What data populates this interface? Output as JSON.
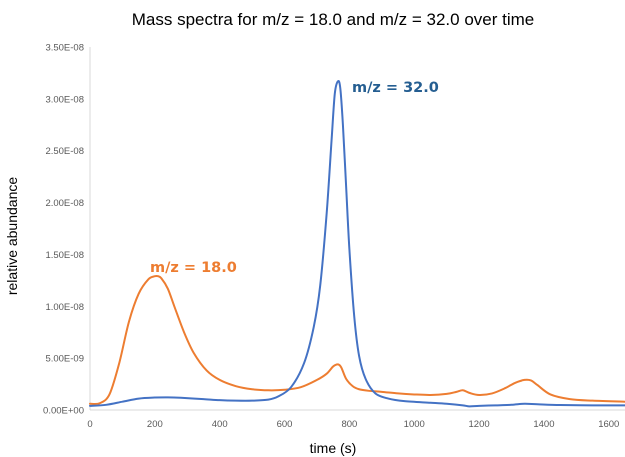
{
  "chart_data": {
    "type": "line",
    "title": "Mass spectra for m/z = 18.0 and m/z = 32.0 over time",
    "xlabel": "time (s)",
    "ylabel": "relative abundance",
    "xlim": [
      0,
      1650
    ],
    "ylim": [
      0,
      3.5e-08
    ],
    "x_ticks": [
      "0",
      "200",
      "400",
      "600",
      "800",
      "1000",
      "1200",
      "1400",
      "1600"
    ],
    "y_ticks": [
      "0.00E+00",
      "5.00E-09",
      "1.00E-08",
      "1.50E-08",
      "2.00E-08",
      "2.50E-08",
      "3.00E-08",
      "3.50E-08"
    ],
    "grid": false,
    "legend": "none",
    "annotations": [
      {
        "text": "m/z = 18.0",
        "series": 0
      },
      {
        "text": "m/z = 32.0",
        "series": 1
      }
    ],
    "series": [
      {
        "name": "m/z = 18.0",
        "color": "#ED7D31",
        "x": [
          0,
          30,
          60,
          90,
          120,
          150,
          180,
          200,
          210,
          220,
          240,
          260,
          290,
          320,
          360,
          400,
          450,
          500,
          550,
          600,
          650,
          700,
          730,
          750,
          765,
          775,
          790,
          810,
          830,
          860,
          900,
          950,
          1000,
          1050,
          1100,
          1130,
          1150,
          1170,
          1200,
          1240,
          1280,
          1310,
          1340,
          1360,
          1380,
          1420,
          1480,
          1550,
          1650
        ],
        "values": [
          6e-10,
          6.5e-10,
          1.5e-09,
          4.5e-09,
          8.5e-09,
          1.12e-08,
          1.26e-08,
          1.29e-08,
          1.29e-08,
          1.27e-08,
          1.17e-08,
          1e-08,
          7.5e-09,
          5.5e-09,
          3.8e-09,
          2.9e-09,
          2.3e-09,
          2e-09,
          1.9e-09,
          1.95e-09,
          2.2e-09,
          2.9e-09,
          3.5e-09,
          4.2e-09,
          4.4e-09,
          4.1e-09,
          3e-09,
          2.3e-09,
          2e-09,
          1.85e-09,
          1.75e-09,
          1.6e-09,
          1.5e-09,
          1.45e-09,
          1.55e-09,
          1.75e-09,
          1.9e-09,
          1.65e-09,
          1.45e-09,
          1.6e-09,
          2.1e-09,
          2.6e-09,
          2.9e-09,
          2.85e-09,
          2.4e-09,
          1.5e-09,
          1.05e-09,
          9e-10,
          8e-10
        ]
      },
      {
        "name": "m/z = 32.0",
        "color": "#4472C4",
        "x": [
          0,
          50,
          100,
          150,
          200,
          240,
          280,
          350,
          400,
          450,
          500,
          550,
          580,
          620,
          660,
          690,
          710,
          730,
          745,
          755,
          765,
          772,
          780,
          790,
          800,
          815,
          830,
          850,
          880,
          920,
          970,
          1050,
          1100,
          1150,
          1170,
          1200,
          1250,
          1300,
          1340,
          1380,
          1450,
          1550,
          1650
        ],
        "values": [
          4e-10,
          5e-10,
          8e-10,
          1.1e-09,
          1.2e-09,
          1.22e-09,
          1.18e-09,
          1.05e-09,
          9.5e-10,
          9e-10,
          9e-10,
          1e-09,
          1.3e-09,
          2.2e-09,
          4.5e-09,
          8e-09,
          1.2e-08,
          1.9e-08,
          2.6e-08,
          3.05e-08,
          3.17e-08,
          3.1e-08,
          2.75e-08,
          2.15e-08,
          1.55e-08,
          9e-09,
          5.2e-09,
          3e-09,
          1.6e-09,
          1.1e-09,
          8.5e-10,
          7e-10,
          6e-10,
          4.5e-10,
          3.5e-10,
          4e-10,
          4.5e-10,
          5e-10,
          6e-10,
          5.5e-10,
          4.8e-10,
          4.5e-10,
          4.5e-10
        ]
      }
    ]
  }
}
